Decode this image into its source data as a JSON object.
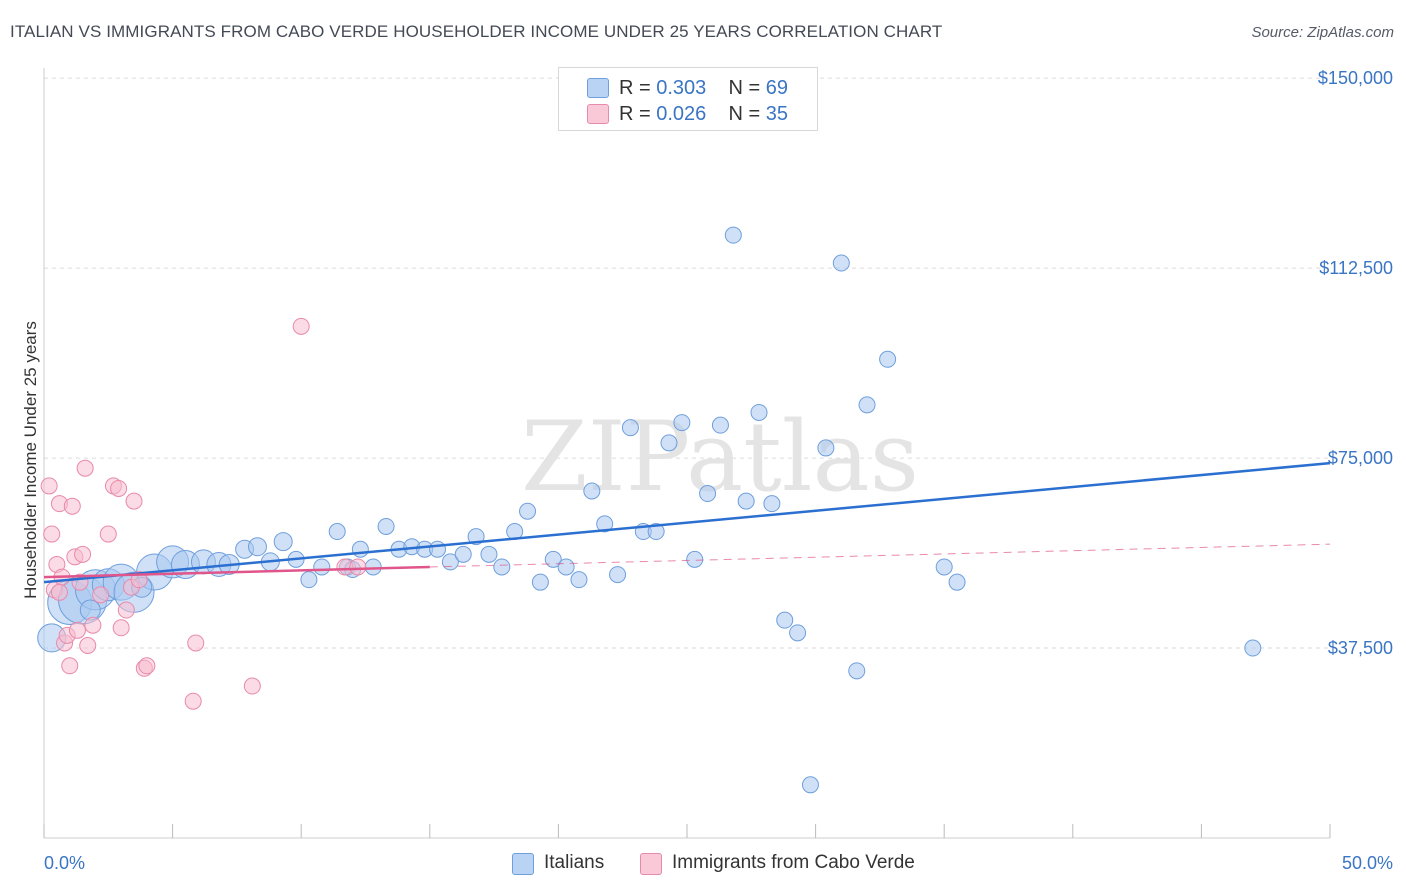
{
  "title": "ITALIAN VS IMMIGRANTS FROM CABO VERDE HOUSEHOLDER INCOME UNDER 25 YEARS CORRELATION CHART",
  "source": "Source: ZipAtlas.com",
  "watermark": "ZIPatlas",
  "legend_top": [
    {
      "r_label": "R = ",
      "r_value": "0.303",
      "n_label": "N = ",
      "n_value": "69"
    },
    {
      "r_label": "R = ",
      "r_value": "0.026",
      "n_label": "N = ",
      "n_value": "35"
    }
  ],
  "legend_bottom": [
    "Italians",
    "Immigrants from Cabo Verde"
  ],
  "colors": {
    "italians_fill": "#a9c8f0",
    "italians_stroke": "#6f9fdc",
    "italians_line": "#2b6fd0",
    "cabo_fill": "#f7bdd0",
    "cabo_stroke": "#e88aab",
    "cabo_line": "#e0558a",
    "tick_label": "#3a75c4",
    "grid": "#dcdcdc"
  },
  "chart_data": {
    "type": "scatter",
    "title": "ITALIAN VS IMMIGRANTS FROM CABO VERDE HOUSEHOLDER INCOME UNDER 25 YEARS CORRELATION CHART",
    "xlabel": "",
    "ylabel": "Householder Income Under 25 years",
    "xlim": [
      0,
      50
    ],
    "ylim": [
      0,
      152000
    ],
    "x_tick_labels": [
      "0.0%",
      "50.0%"
    ],
    "y_ticks": [
      37500,
      75000,
      112500,
      150000
    ],
    "y_tick_labels": [
      "$37,500",
      "$75,000",
      "$112,500",
      "$150,000"
    ],
    "grid": true,
    "series": [
      {
        "name": "Italians",
        "r": 0.303,
        "n": 69,
        "trend": {
          "x": [
            0,
            50
          ],
          "y": [
            50500,
            74000
          ]
        },
        "points": [
          [
            0.3,
            39500,
            14
          ],
          [
            1.0,
            46500,
            22
          ],
          [
            1.5,
            47000,
            24
          ],
          [
            2.0,
            49000,
            20
          ],
          [
            2.5,
            50000,
            16
          ],
          [
            3.0,
            50500,
            18
          ],
          [
            3.5,
            48500,
            20
          ],
          [
            4.3,
            52500,
            18
          ],
          [
            5.0,
            54500,
            16
          ],
          [
            5.5,
            54000,
            14
          ],
          [
            6.2,
            54500,
            12
          ],
          [
            6.8,
            54000,
            12
          ],
          [
            7.2,
            54000,
            10
          ],
          [
            7.8,
            57000,
            9
          ],
          [
            8.3,
            57500,
            9
          ],
          [
            8.8,
            54500,
            9
          ],
          [
            9.3,
            58500,
            9
          ],
          [
            9.8,
            55000,
            8
          ],
          [
            10.3,
            51000,
            8
          ],
          [
            10.8,
            53500,
            8
          ],
          [
            11.4,
            60500,
            8
          ],
          [
            11.8,
            53500,
            8
          ],
          [
            12.3,
            57000,
            8
          ],
          [
            12.8,
            53500,
            8
          ],
          [
            13.3,
            61500,
            8
          ],
          [
            13.8,
            57000,
            8
          ],
          [
            14.3,
            57500,
            8
          ],
          [
            14.8,
            57000,
            8
          ],
          [
            15.3,
            57000,
            8
          ],
          [
            15.8,
            54500,
            8
          ],
          [
            16.3,
            56000,
            8
          ],
          [
            16.8,
            59500,
            8
          ],
          [
            17.3,
            56000,
            8
          ],
          [
            17.8,
            53500,
            8
          ],
          [
            18.3,
            60500,
            8
          ],
          [
            18.8,
            64500,
            8
          ],
          [
            19.3,
            50500,
            8
          ],
          [
            19.8,
            55000,
            8
          ],
          [
            20.3,
            53500,
            8
          ],
          [
            20.8,
            51000,
            8
          ],
          [
            21.3,
            68500,
            8
          ],
          [
            21.8,
            62000,
            8
          ],
          [
            22.3,
            52000,
            8
          ],
          [
            22.8,
            81000,
            8
          ],
          [
            23.3,
            60500,
            8
          ],
          [
            23.8,
            60500,
            8
          ],
          [
            24.3,
            78000,
            8
          ],
          [
            24.8,
            82000,
            8
          ],
          [
            25.3,
            55000,
            8
          ],
          [
            25.8,
            68000,
            8
          ],
          [
            26.3,
            81500,
            8
          ],
          [
            26.8,
            119000,
            8
          ],
          [
            27.3,
            66500,
            8
          ],
          [
            27.8,
            84000,
            8
          ],
          [
            28.3,
            66000,
            8
          ],
          [
            28.8,
            43000,
            8
          ],
          [
            29.3,
            40500,
            8
          ],
          [
            29.8,
            10500,
            8
          ],
          [
            30.4,
            77000,
            8
          ],
          [
            31.0,
            113500,
            8
          ],
          [
            31.6,
            33000,
            8
          ],
          [
            32.0,
            85500,
            8
          ],
          [
            32.8,
            94500,
            8
          ],
          [
            35.0,
            53500,
            8
          ],
          [
            35.5,
            50500,
            8
          ],
          [
            47.0,
            37500,
            8
          ],
          [
            1.8,
            45000,
            10
          ],
          [
            3.8,
            49500,
            10
          ],
          [
            12.0,
            53000,
            8
          ]
        ]
      },
      {
        "name": "Immigrants from Cabo Verde",
        "r": 0.026,
        "n": 35,
        "trend": {
          "x": [
            0,
            15
          ],
          "y": [
            51500,
            53500
          ]
        },
        "trend_dashed": {
          "x": [
            15,
            50
          ],
          "y": [
            53500,
            58000
          ]
        },
        "points": [
          [
            0.2,
            69500,
            8
          ],
          [
            0.3,
            60000,
            8
          ],
          [
            0.4,
            49000,
            8
          ],
          [
            0.5,
            54000,
            8
          ],
          [
            0.6,
            66000,
            8
          ],
          [
            0.7,
            51500,
            8
          ],
          [
            0.8,
            38500,
            8
          ],
          [
            0.9,
            40000,
            8
          ],
          [
            1.0,
            34000,
            8
          ],
          [
            1.1,
            65500,
            8
          ],
          [
            1.2,
            55500,
            8
          ],
          [
            1.3,
            41000,
            8
          ],
          [
            1.4,
            50500,
            8
          ],
          [
            1.5,
            56000,
            8
          ],
          [
            1.6,
            73000,
            8
          ],
          [
            1.7,
            38000,
            8
          ],
          [
            1.9,
            42000,
            8
          ],
          [
            2.2,
            48000,
            8
          ],
          [
            2.5,
            60000,
            8
          ],
          [
            2.7,
            69500,
            8
          ],
          [
            2.9,
            69000,
            8
          ],
          [
            3.0,
            41500,
            8
          ],
          [
            3.2,
            45000,
            8
          ],
          [
            3.4,
            49500,
            8
          ],
          [
            3.5,
            66500,
            8
          ],
          [
            3.7,
            51000,
            8
          ],
          [
            3.9,
            33500,
            8
          ],
          [
            4.0,
            34000,
            8
          ],
          [
            5.8,
            27000,
            8
          ],
          [
            5.9,
            38500,
            8
          ],
          [
            8.1,
            30000,
            8
          ],
          [
            10.0,
            101000,
            8
          ],
          [
            11.7,
            53500,
            8
          ],
          [
            12.2,
            53500,
            8
          ],
          [
            0.6,
            48500,
            8
          ]
        ]
      }
    ]
  }
}
